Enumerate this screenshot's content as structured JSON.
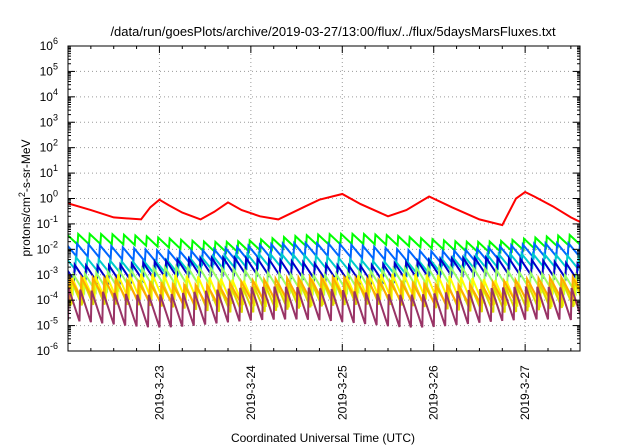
{
  "chart_data": {
    "type": "line",
    "title": "/data/run/goesPlots/archive/2019-03-27/13:00/flux/../flux/5daysMarsFluxes.txt",
    "xlabel": "Coordinated Universal Time (UTC)",
    "ylabel_base": "protons/cm",
    "ylabel_sup": "2",
    "ylabel_rest": "-s-sr-MeV",
    "x_start": "2019-03-22 00:00",
    "xlim_days": [
      0,
      5.6
    ],
    "x_ticks": [
      {
        "label": "2019-3-23",
        "day": 1
      },
      {
        "label": "2019-3-24",
        "day": 2
      },
      {
        "label": "2019-3-25",
        "day": 3
      },
      {
        "label": "2019-3-26",
        "day": 4
      },
      {
        "label": "2019-3-27",
        "day": 5
      }
    ],
    "y_scale": "log",
    "ylim_exp": [
      -6,
      6
    ],
    "y_tick_exponents": [
      6,
      5,
      4,
      3,
      2,
      1,
      0,
      -1,
      -2,
      -3,
      -4,
      -5,
      -6
    ],
    "grid": true,
    "sawtooth_period_hours": 3,
    "series": [
      {
        "color": "#ff0000",
        "width": 2,
        "values_x": [
          0.0,
          0.25,
          0.5,
          0.8,
          0.9,
          1.0,
          1.1,
          1.25,
          1.45,
          1.6,
          1.75,
          1.9,
          2.1,
          2.3,
          2.6,
          2.75,
          3.0,
          3.2,
          3.5,
          3.7,
          3.95,
          4.2,
          4.5,
          4.75,
          4.9,
          5.0,
          5.1,
          5.3,
          5.5,
          5.6
        ],
        "values_y": [
          0.65,
          0.35,
          0.18,
          0.15,
          0.45,
          0.9,
          0.55,
          0.28,
          0.15,
          0.3,
          0.7,
          0.35,
          0.2,
          0.15,
          0.5,
          0.9,
          1.5,
          0.6,
          0.2,
          0.35,
          1.2,
          0.45,
          0.15,
          0.09,
          1.0,
          1.8,
          1.2,
          0.5,
          0.18,
          0.12
        ],
        "sawtooth": false
      },
      {
        "color": "#00ff00",
        "width": 2,
        "base_y": 0.012,
        "peak_y": 0.03,
        "sawtooth": true
      },
      {
        "color": "#0066ff",
        "width": 2,
        "base_y": 0.004,
        "peak_y": 0.013,
        "sawtooth": true
      },
      {
        "color": "#00cccc",
        "width": 2,
        "base_y": 0.0015,
        "peak_y": 0.005,
        "sawtooth": true
      },
      {
        "color": "#0000cc",
        "width": 2,
        "base_y": 0.0008,
        "peak_y": 0.0035,
        "sawtooth": true
      },
      {
        "color": "#99ff66",
        "width": 2,
        "base_y": 0.0003,
        "peak_y": 0.0015,
        "sawtooth": true
      },
      {
        "color": "#ffff00",
        "width": 2,
        "base_y": 8e-05,
        "peak_y": 0.0008,
        "sawtooth": true
      },
      {
        "color": "#dddd00",
        "width": 2,
        "base_y": 5e-05,
        "peak_y": 0.0005,
        "sawtooth": true
      },
      {
        "color": "#ffaa00",
        "width": 2,
        "base_y": 0.0001,
        "peak_y": 0.0006,
        "sawtooth": true
      },
      {
        "color": "#993366",
        "width": 2,
        "base_y": 1.3e-05,
        "peak_y": 0.00025,
        "sawtooth": true
      }
    ]
  }
}
